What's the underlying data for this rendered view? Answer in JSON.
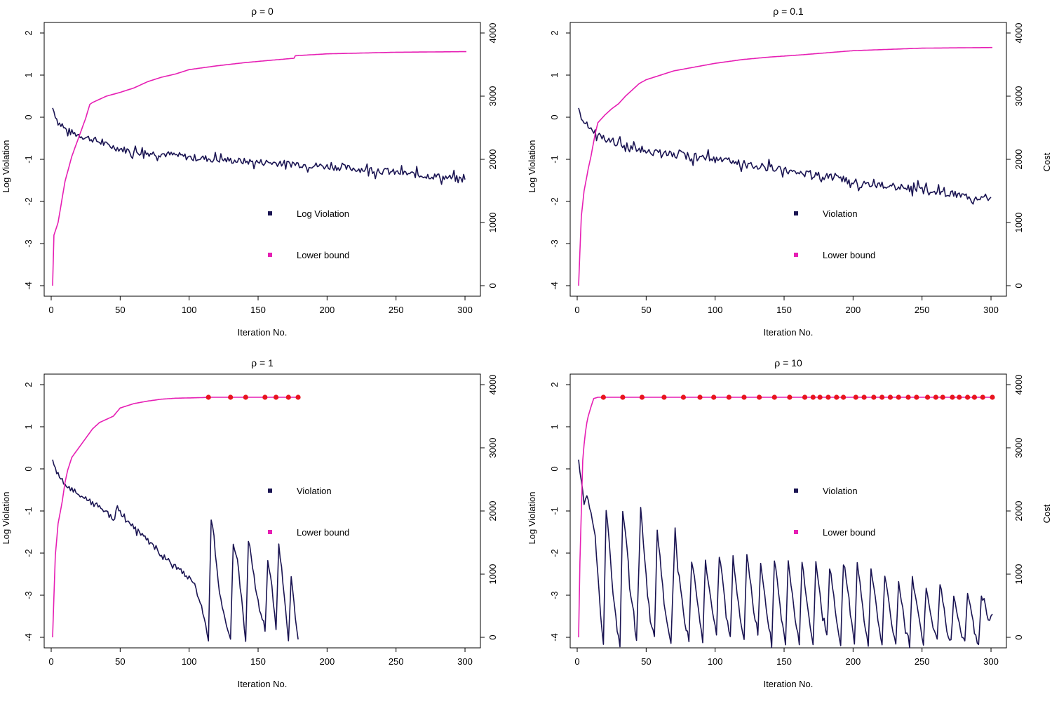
{
  "chart_data": [
    {
      "type": "line",
      "title": "ρ = 0",
      "xlabel": "Iteration No.",
      "ylabel": "Log Violation",
      "y2label": "",
      "xlim": [
        0,
        301
      ],
      "xticks": [
        0,
        50,
        100,
        150,
        200,
        250,
        300
      ],
      "ylim": [
        -4,
        2
      ],
      "yticks": [
        -4,
        -3,
        -2,
        -1,
        0,
        1,
        2
      ],
      "y2lim": [
        0,
        4000
      ],
      "y2ticks": [
        0,
        1000,
        2000,
        3000,
        4000
      ],
      "legend": [
        "Log Violation",
        "Lower bound"
      ],
      "colors": {
        "violation": "#1a1452",
        "bound": "#e61fb4",
        "marker": "#e8141e"
      },
      "series": [
        {
          "name": "Log Violation",
          "axis": "left",
          "color": "#1a1452",
          "x": [
            1,
            5,
            10,
            15,
            20,
            25,
            30,
            40,
            50,
            60,
            70,
            80,
            90,
            100,
            120,
            140,
            160,
            180,
            200,
            220,
            240,
            260,
            280,
            300
          ],
          "y": [
            0.22,
            -0.12,
            -0.28,
            -0.37,
            -0.42,
            -0.48,
            -0.52,
            -0.66,
            -0.75,
            -0.82,
            -0.85,
            -0.87,
            -0.9,
            -0.95,
            -1.0,
            -1.05,
            -1.08,
            -1.12,
            -1.17,
            -1.22,
            -1.28,
            -1.35,
            -1.41,
            -1.48
          ],
          "noise": 0.08
        },
        {
          "name": "Lower bound",
          "axis": "right",
          "color": "#e61fb4",
          "x": [
            1,
            2,
            5,
            10,
            15,
            20,
            25,
            28,
            30,
            40,
            50,
            60,
            70,
            80,
            90,
            100,
            120,
            140,
            160,
            176,
            177,
            200,
            250,
            301
          ],
          "y": [
            0,
            800,
            1000,
            1650,
            2050,
            2350,
            2650,
            2870,
            2900,
            3000,
            3060,
            3130,
            3230,
            3300,
            3350,
            3420,
            3480,
            3530,
            3570,
            3600,
            3640,
            3670,
            3695,
            3705
          ]
        }
      ],
      "markers_x": []
    },
    {
      "type": "line",
      "title": "ρ = 0.1",
      "xlabel": "Iteration No.",
      "ylabel": "Log Violation",
      "y2label": "Cost",
      "xlim": [
        0,
        301
      ],
      "xticks": [
        0,
        50,
        100,
        150,
        200,
        250,
        300
      ],
      "ylim": [
        -4,
        2
      ],
      "yticks": [
        -4,
        -3,
        -2,
        -1,
        0,
        1,
        2
      ],
      "y2lim": [
        0,
        4000
      ],
      "y2ticks": [
        0,
        1000,
        2000,
        3000,
        4000
      ],
      "legend": [
        "Violation",
        "Lower bound"
      ],
      "colors": {
        "violation": "#1a1452",
        "bound": "#e61fb4",
        "marker": "#e8141e"
      },
      "series": [
        {
          "name": "Violation",
          "axis": "left",
          "color": "#1a1452",
          "x": [
            1,
            5,
            10,
            15,
            20,
            30,
            40,
            50,
            60,
            80,
            100,
            120,
            140,
            160,
            180,
            200,
            220,
            240,
            260,
            280,
            300
          ],
          "y": [
            0.22,
            -0.12,
            -0.28,
            -0.42,
            -0.52,
            -0.62,
            -0.72,
            -0.8,
            -0.85,
            -0.92,
            -1.0,
            -1.1,
            -1.2,
            -1.3,
            -1.42,
            -1.52,
            -1.62,
            -1.7,
            -1.78,
            -1.85,
            -1.9
          ],
          "noise": 0.09
        },
        {
          "name": "Lower bound",
          "axis": "right",
          "color": "#e61fb4",
          "x": [
            1,
            3,
            5,
            8,
            10,
            13,
            15,
            20,
            25,
            30,
            35,
            40,
            45,
            50,
            60,
            70,
            80,
            90,
            100,
            120,
            140,
            160,
            200,
            250,
            301
          ],
          "y": [
            0,
            1100,
            1500,
            1850,
            2050,
            2400,
            2580,
            2700,
            2800,
            2880,
            3000,
            3100,
            3200,
            3260,
            3330,
            3400,
            3440,
            3480,
            3520,
            3580,
            3620,
            3650,
            3720,
            3760,
            3770
          ]
        }
      ],
      "markers_x": []
    },
    {
      "type": "line",
      "title": "ρ = 1",
      "xlabel": "Iteration No.",
      "ylabel": "Log Violation",
      "y2label": "",
      "xlim": [
        0,
        301
      ],
      "xticks": [
        0,
        50,
        100,
        150,
        200,
        250,
        300
      ],
      "ylim": [
        -4,
        2
      ],
      "yticks": [
        -4,
        -3,
        -2,
        -1,
        0,
        1,
        2
      ],
      "y2lim": [
        0,
        4000
      ],
      "y2ticks": [
        0,
        1000,
        2000,
        3000,
        4000
      ],
      "legend": [
        "Violation",
        "Lower bound"
      ],
      "colors": {
        "violation": "#1a1452",
        "bound": "#e61fb4",
        "marker": "#e8141e"
      },
      "series": [
        {
          "name": "Violation",
          "axis": "left",
          "color": "#1a1452",
          "x": [
            1,
            5,
            10,
            15,
            20,
            30,
            40,
            46,
            48,
            50,
            60,
            70,
            80,
            90,
            100,
            105,
            110,
            114,
            116,
            118,
            122,
            126,
            130,
            132,
            135,
            138,
            141,
            143,
            146,
            150,
            155,
            157,
            160,
            163,
            165,
            168,
            172,
            174,
            177,
            179
          ],
          "y": [
            0.22,
            -0.15,
            -0.38,
            -0.5,
            -0.6,
            -0.82,
            -1.02,
            -1.25,
            -0.82,
            -1.05,
            -1.4,
            -1.7,
            -2.05,
            -2.3,
            -2.6,
            -2.85,
            -3.4,
            -4.05,
            -1.18,
            -1.6,
            -3.0,
            -3.6,
            -4.0,
            -1.75,
            -2.2,
            -3.1,
            -4.1,
            -1.68,
            -2.3,
            -3.2,
            -3.9,
            -2.2,
            -2.8,
            -3.8,
            -1.8,
            -2.6,
            -4.1,
            -2.5,
            -3.5,
            -4.05
          ],
          "noise": 0.06
        },
        {
          "name": "Lower bound",
          "axis": "right",
          "color": "#e61fb4",
          "x": [
            1,
            3,
            5,
            8,
            10,
            12,
            15,
            20,
            25,
            30,
            35,
            40,
            45,
            50,
            60,
            70,
            80,
            90,
            100,
            110,
            114,
            179
          ],
          "y": [
            0,
            1300,
            1800,
            2150,
            2450,
            2650,
            2850,
            3000,
            3150,
            3300,
            3400,
            3450,
            3500,
            3630,
            3700,
            3740,
            3770,
            3785,
            3790,
            3795,
            3800,
            3800
          ]
        }
      ],
      "markers_x": [
        114,
        130,
        141,
        155,
        163,
        172,
        179
      ]
    },
    {
      "type": "line",
      "title": "ρ = 10",
      "xlabel": "Iteration No.",
      "ylabel": "Log Violation",
      "y2label": "Cost",
      "xlim": [
        0,
        301
      ],
      "xticks": [
        0,
        50,
        100,
        150,
        200,
        250,
        300
      ],
      "ylim": [
        -4,
        2
      ],
      "yticks": [
        -4,
        -3,
        -2,
        -1,
        0,
        1,
        2
      ],
      "y2lim": [
        0,
        4000
      ],
      "y2ticks": [
        0,
        1000,
        2000,
        3000,
        4000
      ],
      "legend": [
        "Violation",
        "Lower bound"
      ],
      "colors": {
        "violation": "#1a1452",
        "bound": "#e61fb4",
        "marker": "#e8141e"
      },
      "series": [
        {
          "name": "Violation",
          "axis": "left",
          "color": "#1a1452",
          "x": [
            1,
            3,
            5,
            7,
            9,
            11,
            13,
            15,
            17,
            19,
            21,
            23,
            26,
            29,
            31,
            33,
            36,
            38,
            41,
            43,
            46,
            48,
            51,
            53,
            56,
            58,
            61,
            63,
            66,
            68,
            71,
            73,
            76,
            78,
            81,
            83,
            86,
            88,
            91,
            93,
            96,
            98,
            101,
            103,
            106,
            108,
            111,
            113,
            116,
            118,
            121,
            123,
            126,
            128,
            131,
            133,
            136,
            138,
            141,
            143,
            146,
            148,
            151,
            153,
            156,
            158,
            161,
            163,
            166,
            168,
            171,
            173,
            176,
            178,
            181,
            183,
            186,
            188,
            191,
            193,
            196,
            198,
            201,
            203,
            206,
            208,
            211,
            213,
            216,
            218,
            221,
            223,
            226,
            228,
            231,
            233,
            236,
            238,
            241,
            243,
            246,
            248,
            251,
            253,
            256,
            258,
            261,
            263,
            266,
            268,
            271,
            273,
            276,
            278,
            281,
            283,
            286,
            288,
            291,
            293,
            296,
            298,
            301
          ],
          "y": [
            0.22,
            -0.3,
            -0.8,
            -0.6,
            -0.9,
            -1.2,
            -1.6,
            -2.5,
            -3.5,
            -4.2,
            -0.95,
            -1.6,
            -3.0,
            -3.8,
            -4.2,
            -1.0,
            -1.8,
            -2.8,
            -3.5,
            -4.1,
            -1.0,
            -1.8,
            -2.9,
            -3.6,
            -4.0,
            -1.5,
            -2.4,
            -3.2,
            -3.8,
            -4.1,
            -1.4,
            -2.4,
            -3.1,
            -3.7,
            -4.0,
            -2.2,
            -2.8,
            -3.4,
            -4.1,
            -2.2,
            -2.9,
            -3.4,
            -3.9,
            -2.0,
            -2.8,
            -3.5,
            -4.0,
            -2.1,
            -2.9,
            -3.5,
            -4.1,
            -2.0,
            -2.8,
            -3.4,
            -3.9,
            -2.2,
            -3.0,
            -3.6,
            -4.2,
            -2.1,
            -2.9,
            -3.5,
            -4.2,
            -2.2,
            -3.0,
            -3.6,
            -4.2,
            -2.2,
            -3.0,
            -3.5,
            -4.2,
            -2.2,
            -3.0,
            -3.5,
            -4.0,
            -2.4,
            -3.0,
            -3.6,
            -4.2,
            -2.2,
            -2.9,
            -3.4,
            -4.2,
            -2.2,
            -3.0,
            -3.6,
            -4.2,
            -2.4,
            -3.0,
            -3.6,
            -4.2,
            -2.5,
            -3.2,
            -3.7,
            -4.2,
            -2.7,
            -3.3,
            -3.8,
            -4.2,
            -2.6,
            -3.2,
            -3.6,
            -4.2,
            -2.8,
            -3.4,
            -3.8,
            -4.0,
            -2.7,
            -3.3,
            -3.9,
            -4.1,
            -3.0,
            -3.5,
            -3.9,
            -4.1,
            -3.0,
            -3.4,
            -3.8,
            -4.2,
            -3.0,
            -3.3,
            -3.7,
            -3.45
          ],
          "noise": 0.05
        },
        {
          "name": "Lower bound",
          "axis": "right",
          "color": "#e61fb4",
          "x": [
            1,
            2,
            3,
            4,
            5,
            6,
            7,
            8,
            10,
            12,
            15,
            20,
            301
          ],
          "y": [
            0,
            1200,
            2000,
            2800,
            3050,
            3250,
            3400,
            3500,
            3650,
            3780,
            3800,
            3800,
            3800
          ]
        }
      ],
      "markers_x": [
        19,
        33,
        47,
        63,
        77,
        89,
        99,
        110,
        121,
        132,
        143,
        154,
        165,
        171,
        176,
        182,
        188,
        193,
        202,
        208,
        215,
        221,
        227,
        233,
        240,
        246,
        254,
        260,
        265,
        272,
        277,
        283,
        288,
        294,
        301
      ]
    }
  ]
}
